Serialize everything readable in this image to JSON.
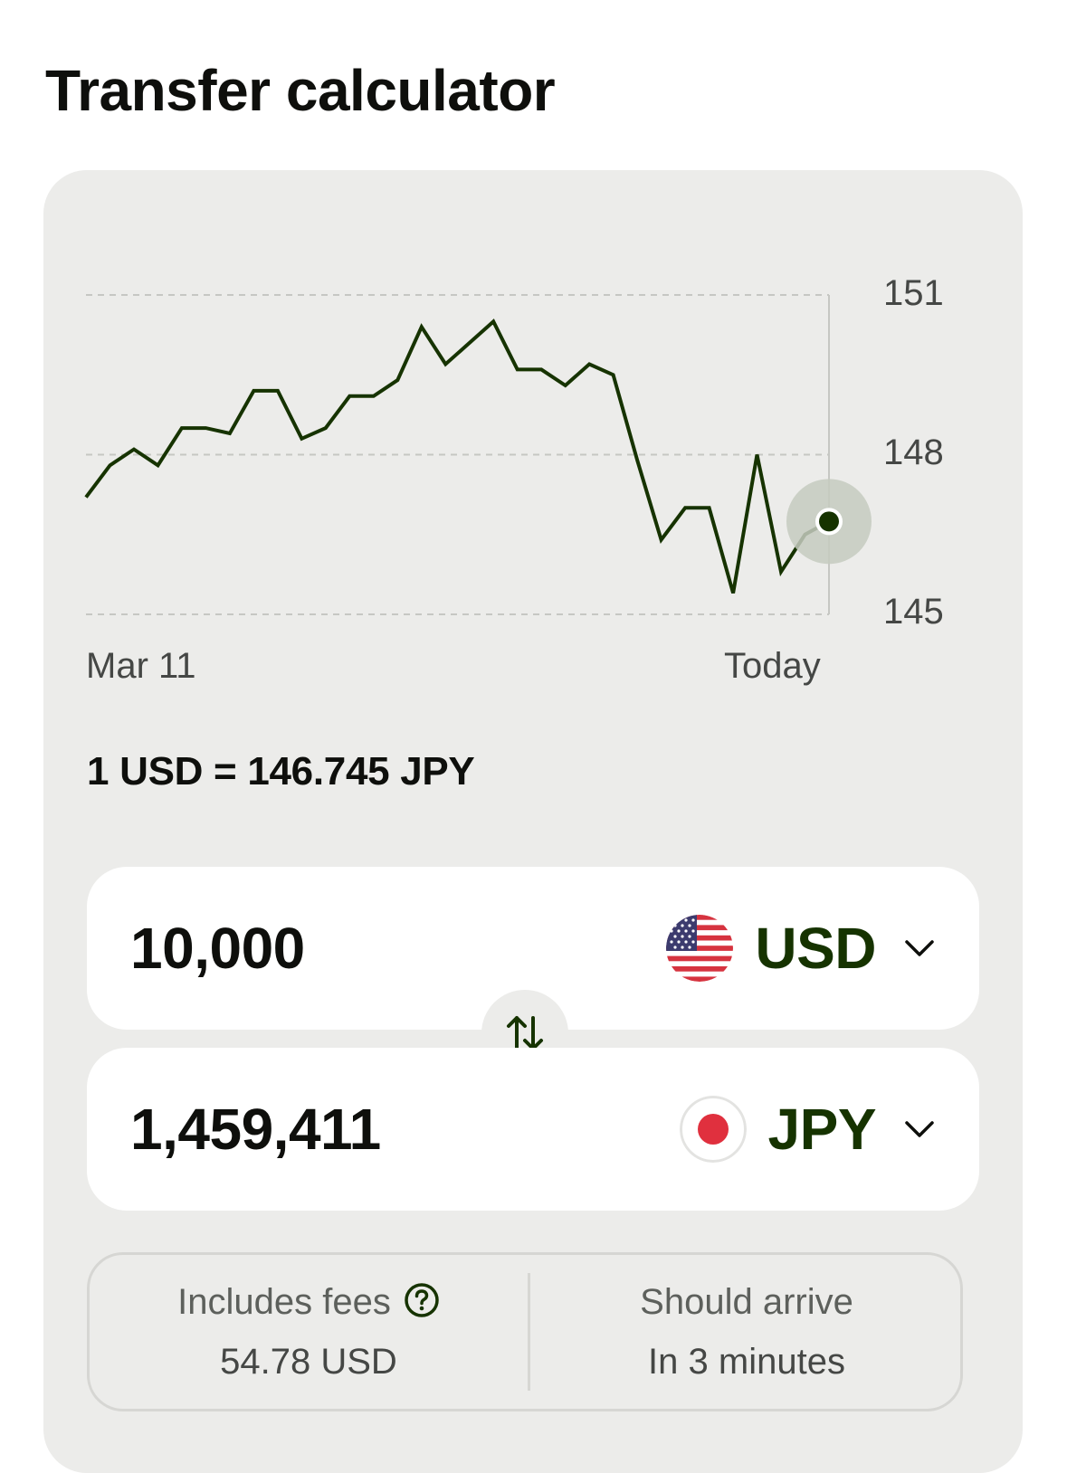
{
  "title": "Transfer calculator",
  "chart_data": {
    "type": "line",
    "x_labels": [
      "Mar 11",
      "Today"
    ],
    "y_ticks": [
      151,
      148,
      145
    ],
    "ylim": [
      145,
      151
    ],
    "grid": true,
    "series": [
      {
        "values": [
          147.2,
          147.8,
          148.1,
          147.8,
          148.5,
          148.5,
          148.4,
          149.2,
          149.2,
          148.3,
          148.5,
          149.1,
          149.1,
          149.4,
          150.4,
          149.7,
          150.1,
          150.5,
          149.6,
          149.6,
          149.3,
          149.7,
          149.5,
          147.9,
          146.4,
          147.0,
          147.0,
          145.4,
          148.0,
          145.8,
          146.5,
          146.745
        ]
      }
    ],
    "line_color": "#163300",
    "highlight_color": "#c5cbc0"
  },
  "rate": "1 USD = 146.745 JPY",
  "send": {
    "amount": "10,000",
    "currency": "USD",
    "flag_icon": "us-flag-icon"
  },
  "receive": {
    "amount": "1,459,411",
    "currency": "JPY",
    "flag_icon": "jp-flag-icon"
  },
  "fees": {
    "label": "Includes fees",
    "value": "54.78 USD"
  },
  "arrival": {
    "label": "Should arrive",
    "value": "In 3 minutes"
  }
}
